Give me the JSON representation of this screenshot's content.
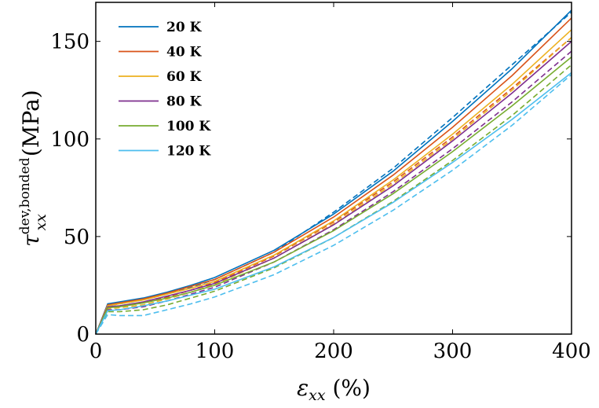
{
  "chart_data": {
    "type": "line",
    "xlabel_symbol": "ε",
    "xlabel_sub": "xx",
    "xlabel_unit": "(%)",
    "ylabel_symbol": "τ",
    "ylabel_sub": "xx",
    "ylabel_sup": "dev,bonded",
    "ylabel_unit": "(MPa)",
    "xlim": [
      0,
      400
    ],
    "ylim": [
      0,
      170
    ],
    "xticks": [
      0,
      100,
      200,
      300,
      400
    ],
    "yticks": [
      0,
      50,
      100,
      150
    ],
    "legend_position": "top-left",
    "grid": false,
    "solid_and_dashed_series": true,
    "series": [
      {
        "name": "20 K",
        "color": "#0072BD",
        "x": [
          0,
          10,
          20,
          40,
          60,
          80,
          100,
          150,
          200,
          250,
          300,
          350,
          400
        ],
        "solid": [
          0,
          15.5,
          16.5,
          18.5,
          21.5,
          25,
          29,
          43,
          61.5,
          83.5,
          109,
          136,
          166
        ],
        "dashed": [
          0,
          14.5,
          15.5,
          17.5,
          20.5,
          24,
          28,
          42,
          62.5,
          85,
          111,
          138,
          165
        ]
      },
      {
        "name": "40 K",
        "color": "#D95319",
        "x": [
          0,
          10,
          20,
          40,
          60,
          80,
          100,
          150,
          200,
          250,
          300,
          350,
          400
        ],
        "solid": [
          0,
          15,
          16,
          18,
          21,
          24.5,
          28,
          42,
          60,
          81.5,
          106,
          132.5,
          162
        ],
        "dashed": [
          0,
          13.5,
          14,
          16,
          19,
          22.5,
          26.5,
          40,
          57.5,
          78,
          101,
          126,
          152
        ]
      },
      {
        "name": "60 K",
        "color": "#EDB120",
        "x": [
          0,
          10,
          20,
          40,
          60,
          80,
          100,
          150,
          200,
          250,
          300,
          350,
          400
        ],
        "solid": [
          0,
          14.5,
          15.5,
          17.5,
          20.5,
          23.5,
          27,
          40.5,
          58,
          79,
          102.5,
          128,
          156
        ],
        "dashed": [
          0,
          13,
          13.5,
          15,
          18,
          21.5,
          25.5,
          39,
          56.5,
          77,
          100,
          125,
          152
        ]
      },
      {
        "name": "80 K",
        "color": "#7E2F8E",
        "x": [
          0,
          10,
          20,
          40,
          60,
          80,
          100,
          150,
          200,
          250,
          300,
          350,
          400
        ],
        "solid": [
          0,
          14,
          14.5,
          16.5,
          19.5,
          22.5,
          26,
          39,
          56,
          76,
          99,
          123.5,
          150
        ],
        "dashed": [
          0,
          12.5,
          12.5,
          14,
          17,
          20.5,
          24,
          37,
          53.5,
          73,
          95,
          119,
          145
        ]
      },
      {
        "name": "100 K",
        "color": "#77AC30",
        "x": [
          0,
          10,
          20,
          40,
          60,
          80,
          100,
          150,
          200,
          250,
          300,
          350,
          400
        ],
        "solid": [
          0,
          13.5,
          14,
          16,
          18.5,
          21.5,
          25,
          37,
          53,
          72,
          93.5,
          117,
          142
        ],
        "dashed": [
          0,
          11.5,
          11.5,
          12.5,
          15,
          18.5,
          22,
          34,
          49.5,
          68,
          89,
          112,
          138
        ]
      },
      {
        "name": "120 K",
        "color": "#4DBEEE",
        "x": [
          0,
          10,
          20,
          40,
          60,
          80,
          100,
          150,
          200,
          250,
          300,
          350,
          400
        ],
        "solid": [
          0,
          12,
          12.5,
          14.5,
          17,
          20,
          23,
          34.5,
          49.5,
          67.5,
          88,
          110,
          134
        ],
        "dashed": [
          0,
          10,
          9.5,
          9.5,
          12.5,
          15.5,
          19,
          30.5,
          45.5,
          63.5,
          84,
          107,
          133
        ]
      }
    ]
  }
}
